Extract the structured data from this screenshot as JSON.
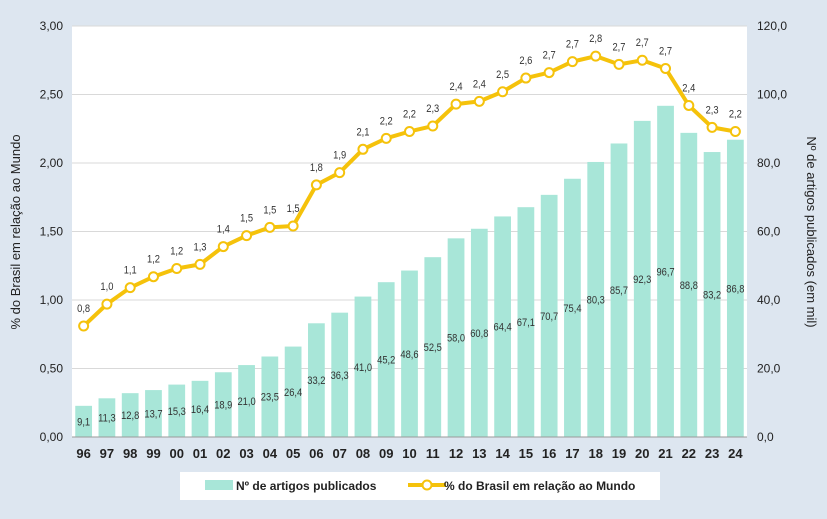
{
  "chart_data": {
    "type": "bar+line",
    "categories": [
      "96",
      "97",
      "98",
      "99",
      "00",
      "01",
      "02",
      "03",
      "04",
      "05",
      "06",
      "07",
      "08",
      "09",
      "10",
      "11",
      "12",
      "13",
      "14",
      "15",
      "16",
      "17",
      "18",
      "19",
      "20",
      "21",
      "22",
      "23",
      "24"
    ],
    "series": [
      {
        "name": "Nº de artigos publicados",
        "type": "bar",
        "axis": "right",
        "color": "#a8e6d8",
        "values": [
          9.1,
          11.3,
          12.8,
          13.7,
          15.3,
          16.4,
          18.9,
          21.0,
          23.5,
          26.4,
          33.2,
          36.3,
          41.0,
          45.2,
          48.6,
          52.5,
          58.0,
          60.8,
          64.4,
          67.1,
          70.7,
          75.4,
          80.3,
          85.7,
          92.3,
          96.7,
          88.8,
          83.2,
          86.8
        ],
        "labels": [
          "9,1",
          "11,3",
          "12,8",
          "13,7",
          "15,3",
          "16,4",
          "18,9",
          "21,0",
          "23,5",
          "26,4",
          "33,2",
          "36,3",
          "41,0",
          "45,2",
          "48,6",
          "52,5",
          "58,0",
          "60,8",
          "64,4",
          "67,1",
          "70,7",
          "75,4",
          "80,3",
          "85,7",
          "92,3",
          "96,7",
          "88,8",
          "83,2",
          "86,8"
        ]
      },
      {
        "name": "% do Brasil em relação ao Mundo",
        "type": "line",
        "axis": "left",
        "color": "#f5c20b",
        "values": [
          0.8,
          1.0,
          1.1,
          1.2,
          1.2,
          1.3,
          1.4,
          1.5,
          1.5,
          1.5,
          1.8,
          1.9,
          2.1,
          2.2,
          2.2,
          2.3,
          2.4,
          2.4,
          2.5,
          2.6,
          2.7,
          2.7,
          2.8,
          2.7,
          2.7,
          2.7,
          2.4,
          2.3,
          2.2
        ],
        "labels": [
          "0,8",
          "1,0",
          "1,1",
          "1,2",
          "1,2",
          "1,3",
          "1,4",
          "1,5",
          "1,5",
          "1,5",
          "1,8",
          "1,9",
          "2,1",
          "2,2",
          "2,2",
          "2,3",
          "2,4",
          "2,4",
          "2,5",
          "2,6",
          "2,7",
          "2,7",
          "2,8",
          "2,7",
          "2,7",
          "2,7",
          "2,4",
          "2,3",
          "2,2"
        ]
      }
    ],
    "line_plot_values": [
      0.81,
      0.97,
      1.09,
      1.17,
      1.23,
      1.26,
      1.39,
      1.47,
      1.53,
      1.54,
      1.84,
      1.93,
      2.1,
      2.18,
      2.23,
      2.27,
      2.43,
      2.45,
      2.52,
      2.62,
      2.66,
      2.74,
      2.78,
      2.72,
      2.75,
      2.69,
      2.42,
      2.26,
      2.23
    ],
    "y_left": {
      "label": "% do Brasil em relação ao Mundo",
      "min": 0,
      "max": 3,
      "ticks": [
        "0,00",
        "0,50",
        "1,00",
        "1,50",
        "2,00",
        "2,50",
        "3,00"
      ]
    },
    "y_right": {
      "label": "Nº de artigos publicados (em mil)",
      "min": 0,
      "max": 120,
      "ticks": [
        "0,0",
        "20,0",
        "40,0",
        "60,0",
        "80,0",
        "100,0",
        "120,0"
      ]
    },
    "grid": true,
    "legend_position": "bottom"
  }
}
